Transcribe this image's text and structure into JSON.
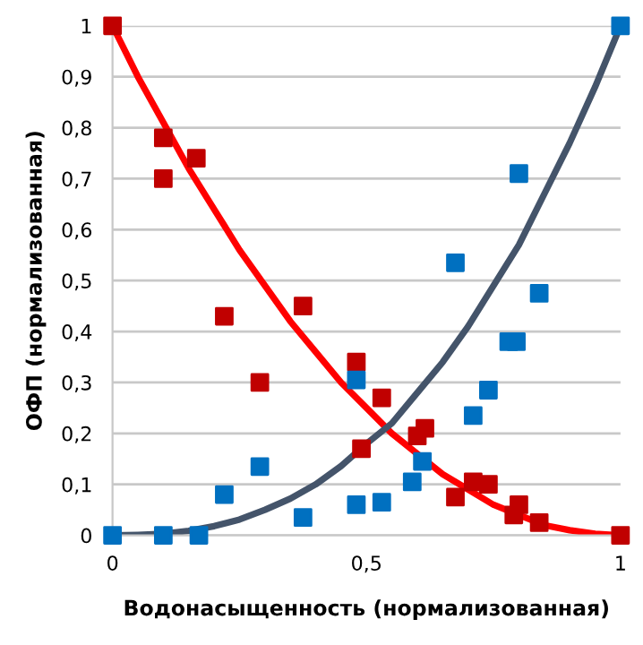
{
  "chart_data": {
    "type": "scatter",
    "xlabel": "Водонасыщенность (нормализованная)",
    "ylabel": "ОФП (нормализованная)",
    "xlim": [
      0,
      1
    ],
    "ylim": [
      0,
      1
    ],
    "xticks": [
      0,
      {
        "value": 0.5,
        "label": "0,5"
      },
      1
    ],
    "yticks": [
      0,
      {
        "value": 0.1,
        "label": "0,1"
      },
      {
        "value": 0.2,
        "label": "0,2"
      },
      {
        "value": 0.3,
        "label": "0,3"
      },
      {
        "value": 0.4,
        "label": "0,4"
      },
      {
        "value": 0.5,
        "label": "0,5"
      },
      {
        "value": 0.6,
        "label": "0,6"
      },
      {
        "value": 0.7,
        "label": "0,7"
      },
      {
        "value": 0.8,
        "label": "0,8"
      },
      {
        "value": 0.9,
        "label": "0,9"
      },
      1
    ],
    "grid": "y",
    "marker": "square",
    "legend": false,
    "series": [
      {
        "type": "line",
        "marker": "none",
        "color": "#ff0000",
        "x": [
          0,
          0.05,
          0.1,
          0.15,
          0.2,
          0.25,
          0.3,
          0.35,
          0.4,
          0.45,
          0.5,
          0.55,
          0.6,
          0.65,
          0.7,
          0.75,
          0.8,
          0.85,
          0.9,
          0.95,
          1
        ],
        "values": [
          1,
          0.9,
          0.81,
          0.72,
          0.64,
          0.56,
          0.49,
          0.42,
          0.36,
          0.3,
          0.25,
          0.2,
          0.16,
          0.12,
          0.09,
          0.06,
          0.04,
          0.02,
          0.01,
          0.003,
          0
        ]
      },
      {
        "type": "line",
        "marker": "none",
        "color": "#44546a",
        "x": [
          0,
          0.05,
          0.1,
          0.15,
          0.2,
          0.25,
          0.3,
          0.35,
          0.4,
          0.45,
          0.5,
          0.55,
          0.6,
          0.65,
          0.7,
          0.75,
          0.8,
          0.85,
          0.9,
          0.95,
          1
        ],
        "values": [
          0,
          0.001,
          0.003,
          0.009,
          0.018,
          0.031,
          0.05,
          0.072,
          0.1,
          0.136,
          0.18,
          0.22,
          0.28,
          0.34,
          0.41,
          0.49,
          0.57,
          0.67,
          0.77,
          0.88,
          1
        ]
      },
      {
        "color": "#c00000",
        "x": [
          0,
          0.1,
          0.1,
          0.165,
          0.22,
          0.29,
          0.375,
          0.48,
          0.53,
          0.49,
          0.6,
          0.615,
          0.675,
          0.71,
          0.74,
          0.79,
          0.8,
          0.84,
          1
        ],
        "values": [
          1,
          0.78,
          0.7,
          0.74,
          0.43,
          0.3,
          0.45,
          0.34,
          0.27,
          0.17,
          0.195,
          0.21,
          0.075,
          0.105,
          0.1,
          0.04,
          0.06,
          0.025,
          0
        ]
      },
      {
        "color": "#0070c0",
        "x": [
          0,
          0.1,
          0.17,
          0.22,
          0.29,
          0.375,
          0.48,
          0.48,
          0.53,
          0.59,
          0.61,
          0.675,
          0.71,
          0.74,
          0.78,
          0.795,
          0.8,
          0.84,
          1
        ],
        "values": [
          0,
          0,
          0,
          0.08,
          0.135,
          0.035,
          0.305,
          0.06,
          0.065,
          0.105,
          0.145,
          0.535,
          0.235,
          0.285,
          0.38,
          0.38,
          0.71,
          0.475,
          1
        ]
      }
    ]
  }
}
